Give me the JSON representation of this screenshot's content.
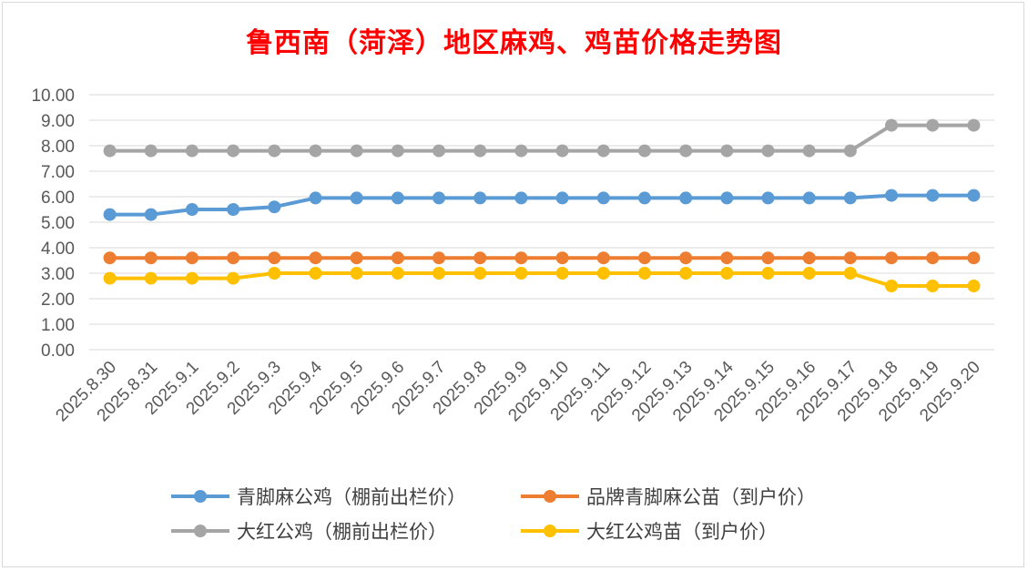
{
  "chart_data": {
    "type": "line",
    "title": "鲁西南（菏泽）地区麻鸡、鸡苗价格走势图",
    "xlabel": "",
    "ylabel": "",
    "ylim": [
      0,
      10
    ],
    "y_ticks": [
      "0.00",
      "1.00",
      "2.00",
      "3.00",
      "4.00",
      "5.00",
      "6.00",
      "7.00",
      "8.00",
      "9.00",
      "10.00"
    ],
    "categories": [
      "2025.8.30",
      "2025.8.31",
      "2025.9.1",
      "2025.9.2",
      "2025.9.3",
      "2025.9.4",
      "2025.9.5",
      "2025.9.6",
      "2025.9.7",
      "2025.9.8",
      "2025.9.9",
      "2025.9.10",
      "2025.9.11",
      "2025.9.12",
      "2025.9.13",
      "2025.9.14",
      "2025.9.15",
      "2025.9.16",
      "2025.9.17",
      "2025.9.18",
      "2025.9.19",
      "2025.9.20"
    ],
    "grid": true,
    "legend_position": "bottom",
    "series": [
      {
        "name": "青脚麻公鸡（棚前出栏价）",
        "color": "#5b9bd5",
        "values": [
          5.3,
          5.3,
          5.5,
          5.5,
          5.6,
          5.95,
          5.95,
          5.95,
          5.95,
          5.95,
          5.95,
          5.95,
          5.95,
          5.95,
          5.95,
          5.95,
          5.95,
          5.95,
          5.95,
          6.05,
          6.05,
          6.05
        ]
      },
      {
        "name": "品牌青脚麻公苗（到户价）",
        "color": "#ed7d31",
        "values": [
          3.6,
          3.6,
          3.6,
          3.6,
          3.6,
          3.6,
          3.6,
          3.6,
          3.6,
          3.6,
          3.6,
          3.6,
          3.6,
          3.6,
          3.6,
          3.6,
          3.6,
          3.6,
          3.6,
          3.6,
          3.6,
          3.6
        ]
      },
      {
        "name": "大红公鸡（棚前出栏价）",
        "color": "#a5a5a5",
        "values": [
          7.8,
          7.8,
          7.8,
          7.8,
          7.8,
          7.8,
          7.8,
          7.8,
          7.8,
          7.8,
          7.8,
          7.8,
          7.8,
          7.8,
          7.8,
          7.8,
          7.8,
          7.8,
          7.8,
          8.8,
          8.8,
          8.8
        ]
      },
      {
        "name": "大红公鸡苗（到户价）",
        "color": "#ffc000",
        "values": [
          2.8,
          2.8,
          2.8,
          2.8,
          3.0,
          3.0,
          3.0,
          3.0,
          3.0,
          3.0,
          3.0,
          3.0,
          3.0,
          3.0,
          3.0,
          3.0,
          3.0,
          3.0,
          3.0,
          2.5,
          2.5,
          2.5
        ]
      }
    ]
  }
}
